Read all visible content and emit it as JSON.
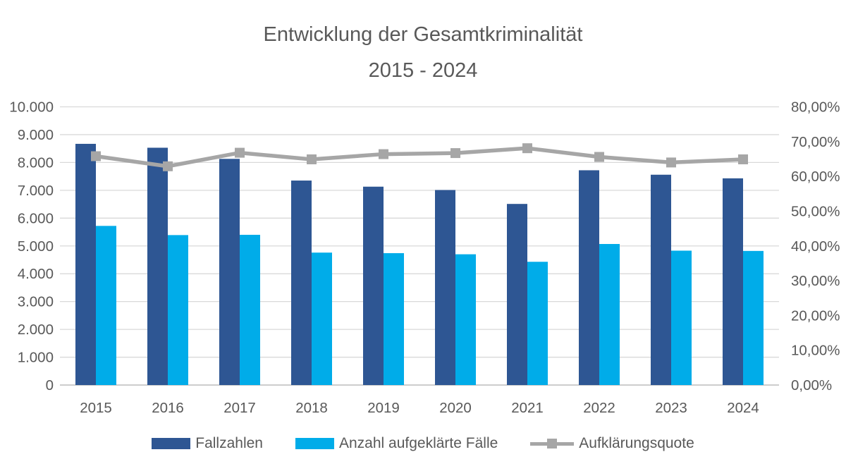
{
  "title": {
    "line1": "Entwicklung der Gesamtkriminalität",
    "line2": "2015 - 2024"
  },
  "colors": {
    "bar_dark_blue": "#2E5693",
    "bar_light_blue": "#00ACE9",
    "line_gray": "#A6A6A6",
    "gridline": "#D9D9D9",
    "axis_line": "#BFBFBF",
    "text_gray": "#595959"
  },
  "legend": [
    {
      "label": "Fallzahlen",
      "swatch": "bar-dark-blue"
    },
    {
      "label": "Anzahl aufgeklärte Fälle",
      "swatch": "bar-light-blue"
    },
    {
      "label": "Aufklärungsquote",
      "swatch": "gray-line-with-square-marker"
    }
  ],
  "chart_data": {
    "type": "combo-bar-line",
    "title": "Entwicklung der Gesamtkriminalität 2015 - 2024",
    "categories": [
      "2015",
      "2016",
      "2017",
      "2018",
      "2019",
      "2020",
      "2021",
      "2022",
      "2023",
      "2024"
    ],
    "series": [
      {
        "name": "Fallzahlen",
        "type": "bar",
        "axis": "left",
        "values": [
          8670,
          8530,
          8130,
          7350,
          7130,
          7010,
          6510,
          7720,
          7560,
          7430
        ]
      },
      {
        "name": "Anzahl aufgeklärte Fälle",
        "type": "bar",
        "axis": "left",
        "values": [
          5720,
          5390,
          5400,
          4760,
          4740,
          4700,
          4430,
          5070,
          4830,
          4820
        ]
      },
      {
        "name": "Aufklärungsquote",
        "type": "line",
        "axis": "right",
        "marker": "square",
        "values": [
          65.8,
          62.9,
          66.8,
          64.9,
          66.4,
          66.7,
          68.1,
          65.6,
          64.0,
          64.9
        ]
      }
    ],
    "left_axis": {
      "min": 0,
      "max": 10000,
      "step": 1000,
      "tick_labels": [
        "0",
        "1.000",
        "2.000",
        "3.000",
        "4.000",
        "5.000",
        "6.000",
        "7.000",
        "8.000",
        "9.000",
        "10.000"
      ]
    },
    "right_axis": {
      "min": 0,
      "max": 80,
      "step": 10,
      "tick_labels": [
        "0,00%",
        "10,00%",
        "20,00%",
        "30,00%",
        "40,00%",
        "50,00%",
        "60,00%",
        "70,00%",
        "80,00%"
      ]
    },
    "grid": true,
    "legend_position": "bottom"
  }
}
